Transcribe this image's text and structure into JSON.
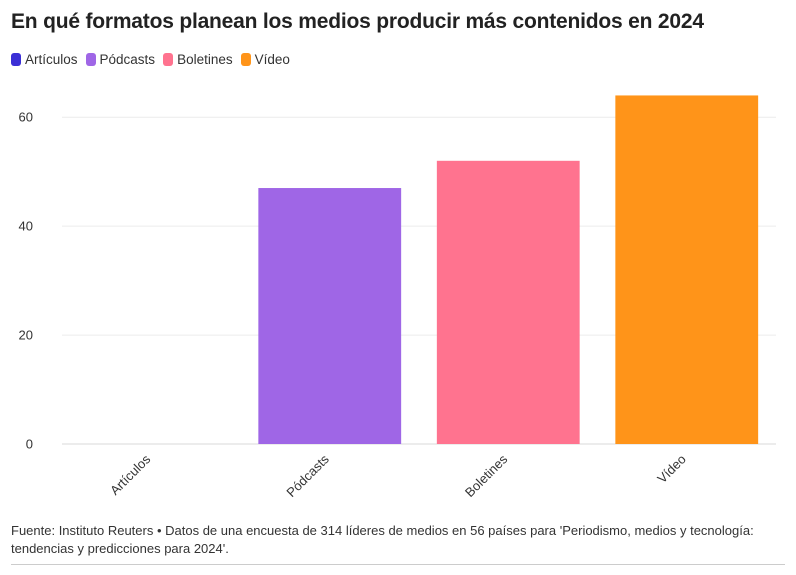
{
  "title": "En qué formatos planean los medios producir más contenidos en 2024",
  "legend": [
    {
      "label": "Artículos",
      "color": "#3b2fd6"
    },
    {
      "label": "Pódcasts",
      "color": "#9f66e6"
    },
    {
      "label": "Boletines",
      "color": "#ff738f"
    },
    {
      "label": "Vídeo",
      "color": "#ff9419"
    }
  ],
  "chart_data": {
    "type": "bar",
    "categories": [
      "Artículos",
      "Pódcasts",
      "Boletines",
      "Vídeo"
    ],
    "values": [
      0,
      47,
      52,
      64
    ],
    "colors": [
      "#3b2fd6",
      "#9f66e6",
      "#ff738f",
      "#ff9419"
    ],
    "yticks": [
      0,
      20,
      40,
      60
    ],
    "ylim": [
      0,
      65
    ],
    "grid": true
  },
  "source": "Fuente: Instituto Reuters • Datos de una encuesta de 314 líderes de medios en 56 países para 'Periodismo, medios y tecnología: tendencias y predicciones para 2024'."
}
